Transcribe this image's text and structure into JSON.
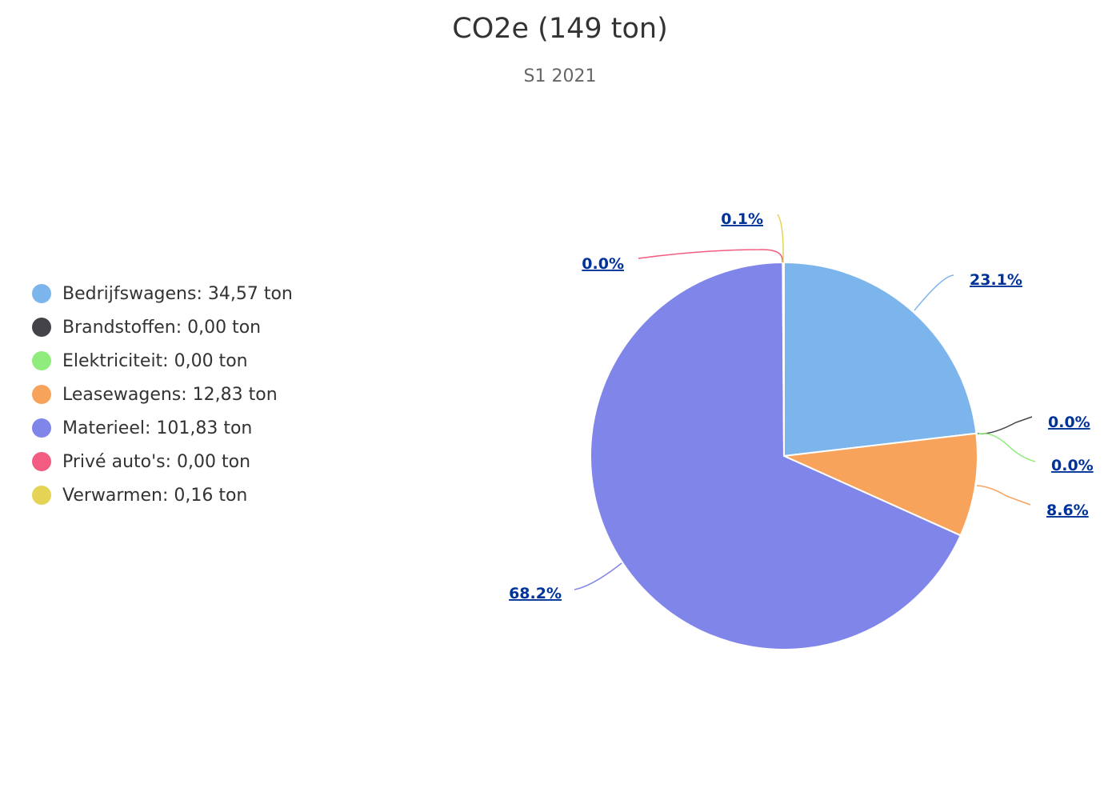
{
  "chart_data": {
    "type": "pie",
    "title": "CO2e (149 ton)",
    "subtitle": "S1 2021",
    "legend_position": "left",
    "series": [
      {
        "name": "Bedrijfswagens",
        "legend": "Bedrijfswagens: 34,57 ton",
        "value": 34.57,
        "percent_label": "23.1%",
        "color": "#7cb5ec"
      },
      {
        "name": "Brandstoffen",
        "legend": "Brandstoffen: 0,00 ton",
        "value": 0.0,
        "percent_label": "0.0%",
        "color": "#434348"
      },
      {
        "name": "Elektriciteit",
        "legend": "Elektriciteit: 0,00 ton",
        "value": 0.0,
        "percent_label": "0.0%",
        "color": "#90ed7d"
      },
      {
        "name": "Leasewagens",
        "legend": "Leasewagens: 12,83 ton",
        "value": 12.83,
        "percent_label": "8.6%",
        "color": "#f7a35c"
      },
      {
        "name": "Materieel",
        "legend": "Materieel: 101,83 ton",
        "value": 101.83,
        "percent_label": "68.2%",
        "color": "#8085e9"
      },
      {
        "name": "Privé auto's",
        "legend": "Privé auto's: 0,00 ton",
        "value": 0.0,
        "percent_label": "0.0%",
        "color": "#f15c80"
      },
      {
        "name": "Verwarmen",
        "legend": "Verwarmen: 0,16 ton",
        "value": 0.16,
        "percent_label": "0.1%",
        "color": "#e4d354"
      }
    ]
  }
}
